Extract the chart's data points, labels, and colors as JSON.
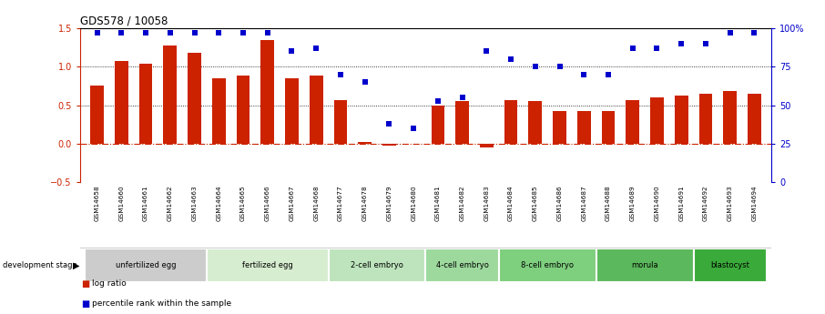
{
  "title": "GDS578 / 10058",
  "samples": [
    "GSM14658",
    "GSM14660",
    "GSM14661",
    "GSM14662",
    "GSM14663",
    "GSM14664",
    "GSM14665",
    "GSM14666",
    "GSM14667",
    "GSM14668",
    "GSM14677",
    "GSM14678",
    "GSM14679",
    "GSM14680",
    "GSM14681",
    "GSM14682",
    "GSM14683",
    "GSM14684",
    "GSM14685",
    "GSM14686",
    "GSM14687",
    "GSM14688",
    "GSM14689",
    "GSM14690",
    "GSM14691",
    "GSM14692",
    "GSM14693",
    "GSM14694"
  ],
  "log_ratio": [
    0.75,
    1.08,
    1.04,
    1.27,
    1.18,
    0.85,
    0.88,
    1.35,
    0.85,
    0.88,
    0.57,
    0.02,
    -0.03,
    0.0,
    0.5,
    0.55,
    -0.05,
    0.57,
    0.55,
    0.42,
    0.42,
    0.42,
    0.57,
    0.6,
    0.63,
    0.65,
    0.68,
    0.65
  ],
  "percentile_rank": [
    97,
    97,
    97,
    97,
    97,
    97,
    97,
    97,
    85,
    87,
    70,
    65,
    38,
    35,
    53,
    55,
    85,
    80,
    75,
    75,
    70,
    70,
    87,
    87,
    90,
    90,
    97,
    97
  ],
  "stages": [
    {
      "label": "unfertilized egg",
      "start": 0,
      "end": 5
    },
    {
      "label": "fertilized egg",
      "start": 5,
      "end": 10
    },
    {
      "label": "2-cell embryo",
      "start": 10,
      "end": 14
    },
    {
      "label": "4-cell embryo",
      "start": 14,
      "end": 17
    },
    {
      "label": "8-cell embryo",
      "start": 17,
      "end": 21
    },
    {
      "label": "morula",
      "start": 21,
      "end": 25
    },
    {
      "label": "blastocyst",
      "start": 25,
      "end": 28
    }
  ],
  "stage_colors": [
    "#cccccc",
    "#d6edcf",
    "#bde4bc",
    "#9dd99d",
    "#7ecf7e",
    "#5cb85c",
    "#3aaa3a"
  ],
  "bar_color": "#cc2200",
  "dot_color": "#0000cc",
  "ylim_left": [
    -0.5,
    1.5
  ],
  "ylim_right": [
    0,
    100
  ],
  "yticks_left": [
    -0.5,
    0.0,
    0.5,
    1.0,
    1.5
  ],
  "yticks_right": [
    0,
    25,
    50,
    75,
    100
  ],
  "hlines_dotted": [
    0.5,
    1.0
  ],
  "zero_line": 0.0
}
